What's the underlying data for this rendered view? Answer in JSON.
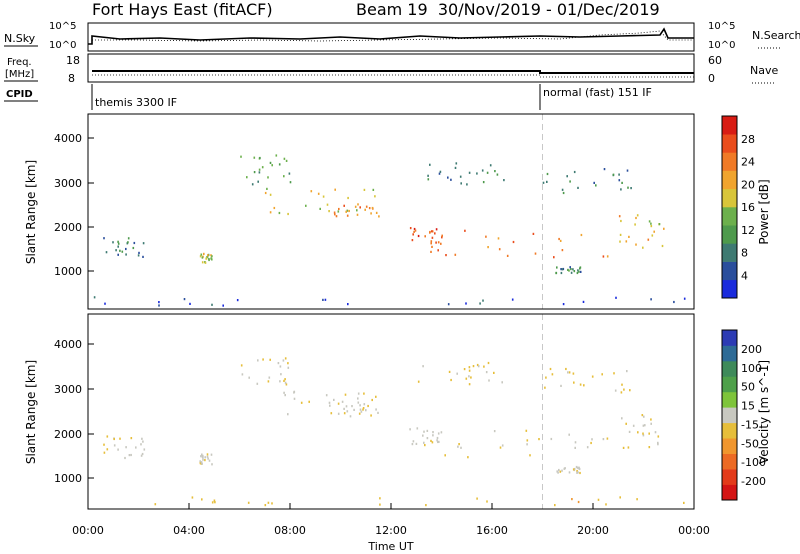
{
  "header": {
    "station": "Fort Hays East (fitACF)",
    "beam_info": "Beam 19  30/Nov/2019 - 01/Dec/2019"
  },
  "strips": {
    "nsky_label": "N.Sky",
    "nsky_ticks": [
      "10^5",
      "10^0"
    ],
    "nsearch_label": "N.Search",
    "nsearch_ticks": [
      "10^5",
      "10^0"
    ],
    "freq_label_1": "Freq.",
    "freq_label_2": "[MHz]",
    "freq_ticks": [
      "18",
      "8"
    ],
    "nave_label": "Nave",
    "nave_ticks": [
      "60",
      "0"
    ],
    "cpid_label": "CPID",
    "cpid_segments": [
      "themis 3300 IF",
      "normal (fast) 151 IF"
    ]
  },
  "panels": {
    "ylabel": "Slant Range [km]",
    "xlabel": "Time UT",
    "y_ticks": [
      "1000",
      "2000",
      "3000",
      "4000"
    ],
    "x_ticks": [
      "00:00",
      "04:00",
      "08:00",
      "12:00",
      "16:00",
      "20:00",
      "00:00"
    ]
  },
  "colorbars": {
    "power": {
      "title": "Power [dB]",
      "ticks": [
        "4",
        "8",
        "12",
        "16",
        "20",
        "24",
        "28"
      ],
      "colors": [
        "#1a2bdc",
        "#2a4e9c",
        "#3e7a72",
        "#4e9a4c",
        "#6cb04c",
        "#d8c53a",
        "#f0a42e",
        "#f07a26",
        "#ea4d1c",
        "#d81c14"
      ]
    },
    "velocity": {
      "title": "Velocity [m s^-1]",
      "ticks": [
        "200",
        "100",
        "50",
        "15",
        "-15",
        "-50",
        "-100",
        "-200"
      ],
      "colors": [
        "#2c3bb4",
        "#2e6b96",
        "#3e8a5a",
        "#4ea04a",
        "#7ec43a",
        "#c8c8c0",
        "#e6be3a",
        "#f0962e",
        "#ec6a24",
        "#e33a1a",
        "#d41414"
      ]
    }
  },
  "chart_data": {
    "type": "heatmap",
    "x_unit": "hours UT from 00:00 30/Nov/2019",
    "xlim": [
      0,
      24
    ],
    "ylim": [
      0,
      4500
    ],
    "bands": [
      {
        "t0": 0.6,
        "t1": 2.3,
        "r0": 1200,
        "r1": 1700,
        "power": 9,
        "velocity": -5
      },
      {
        "t0": 4.4,
        "t1": 4.9,
        "r0": 1050,
        "r1": 1300,
        "power": 17,
        "velocity": -5
      },
      {
        "t0": 5.8,
        "t1": 8.0,
        "r0": 2900,
        "r1": 3600,
        "power": 13,
        "velocity": -15
      },
      {
        "t0": 7.0,
        "t1": 11.5,
        "r0": 2200,
        "r1": 2800,
        "power": 19,
        "velocity": -10
      },
      {
        "t0": 9.5,
        "t1": 11.5,
        "r0": 2150,
        "r1": 2450,
        "power": 24,
        "velocity": -10
      },
      {
        "t0": 12.7,
        "t1": 14.0,
        "r0": 1500,
        "r1": 1900,
        "power": 27,
        "velocity": -5
      },
      {
        "t0": 13.5,
        "t1": 21.0,
        "r0": 1200,
        "r1": 1850,
        "power": 25,
        "velocity": -5
      },
      {
        "t0": 18.5,
        "t1": 19.5,
        "r0": 850,
        "r1": 1000,
        "power": 11,
        "velocity": -5
      },
      {
        "t0": 21.0,
        "t1": 22.8,
        "r0": 1400,
        "r1": 2200,
        "power": 20,
        "velocity": -20
      },
      {
        "t0": 13.0,
        "t1": 16.5,
        "r0": 2900,
        "r1": 3400,
        "power": 10,
        "velocity": -20
      },
      {
        "t0": 18.0,
        "t1": 21.5,
        "r0": 2700,
        "r1": 3300,
        "power": 10,
        "velocity": -30
      },
      {
        "t0": 0.0,
        "t1": 24.0,
        "r0": 100,
        "r1": 300,
        "power": 6,
        "velocity": -35
      }
    ],
    "cpid_switch_hour": 18.0
  }
}
